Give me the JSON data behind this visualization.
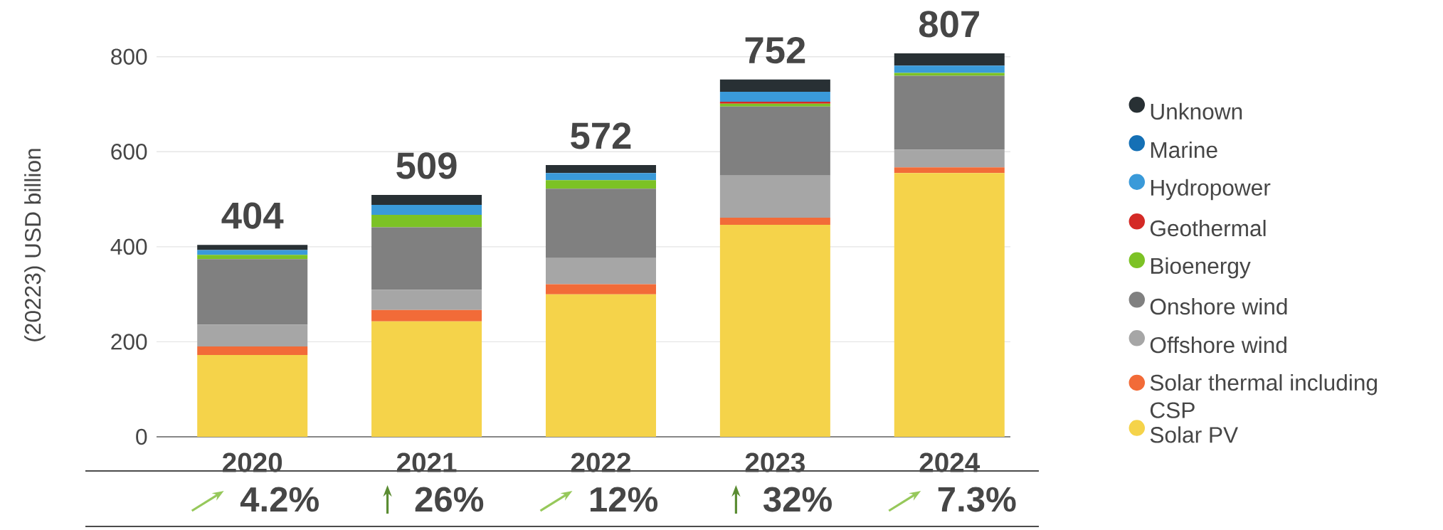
{
  "chart_data": {
    "type": "bar",
    "stacked": true,
    "ylabel": "(20223) USD billion",
    "categories": [
      "2020",
      "2021",
      "2022",
      "2023",
      "2024"
    ],
    "series": [
      {
        "name": "Solar PV",
        "color": "#f5d34a",
        "values": [
          172,
          243,
          300,
          446,
          555
        ]
      },
      {
        "name": "Solar thermal including CSP",
        "color": "#f26b38",
        "values": [
          18,
          24,
          21,
          15,
          12
        ]
      },
      {
        "name": "Offshore wind",
        "color": "#a6a6a6",
        "values": [
          46,
          42,
          55,
          89,
          37
        ]
      },
      {
        "name": "Onshore wind",
        "color": "#808080",
        "values": [
          138,
          132,
          146,
          145,
          156
        ]
      },
      {
        "name": "Bioenergy",
        "color": "#7cc225",
        "values": [
          9,
          26,
          18,
          6,
          6
        ]
      },
      {
        "name": "Geothermal",
        "color": "#d42a26",
        "values": [
          0,
          0,
          0,
          4,
          0
        ]
      },
      {
        "name": "Hydropower",
        "color": "#3a9ad9",
        "values": [
          10,
          21,
          15,
          21,
          15
        ]
      },
      {
        "name": "Marine",
        "color": "#1570b5",
        "values": [
          0,
          0,
          0,
          0,
          0
        ]
      },
      {
        "name": "Unknown",
        "color": "#283034",
        "values": [
          11,
          21,
          17,
          26,
          26
        ]
      }
    ],
    "totals": [
      "404",
      "509",
      "572",
      "752",
      "807"
    ],
    "annotations": [
      "4.2%",
      "26%",
      "12%",
      "32%",
      "7.3%"
    ],
    "ylim": [
      0,
      807
    ],
    "yticks": [
      0,
      200,
      400,
      600,
      800
    ],
    "grid": "y",
    "legend": "right"
  }
}
